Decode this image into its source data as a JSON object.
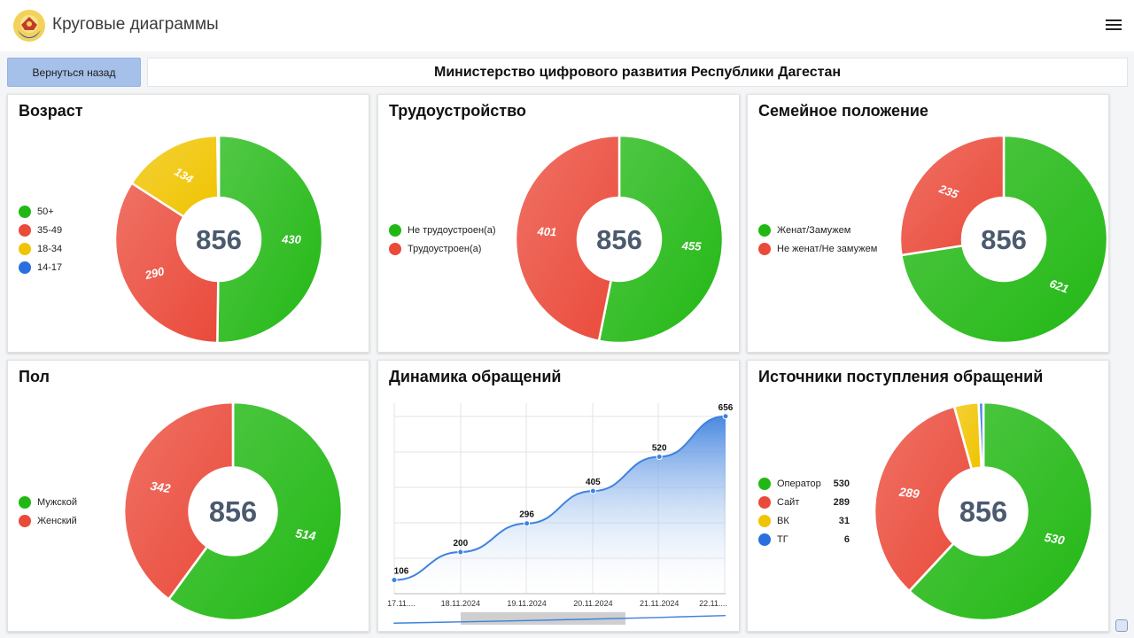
{
  "header": {
    "title": "Круговые диаграммы",
    "menu_icon": "hamburger-menu-icon",
    "logo_icon": "dagestan-emblem-icon"
  },
  "toolbar": {
    "back_label": "Вернуться назад",
    "ministry_label": "Министерство цифрового развития Республики Дагестан"
  },
  "colors": {
    "green": "#22b814",
    "red": "#ea4a3a",
    "yellow": "#f0c400",
    "blue": "#2a6fe0",
    "line": "#3f82de"
  },
  "cards": {
    "age": {
      "title": "Возраст",
      "total": "856",
      "legend": [
        {
          "label": "50+",
          "color": "#22b814"
        },
        {
          "label": "35-49",
          "color": "#ea4a3a"
        },
        {
          "label": "18-34",
          "color": "#f0c400"
        },
        {
          "label": "14-17",
          "color": "#2a6fe0"
        }
      ]
    },
    "employment": {
      "title": "Трудоустройство",
      "total": "856",
      "legend": [
        {
          "label": "Не трудоустроен(а)",
          "color": "#22b814"
        },
        {
          "label": "Трудоустроен(а)",
          "color": "#ea4a3a"
        }
      ]
    },
    "family": {
      "title": "Семейное положение",
      "total": "856",
      "legend": [
        {
          "label": "Женат/Замужем",
          "color": "#22b814"
        },
        {
          "label": "Не женат/Не замужем",
          "color": "#ea4a3a"
        }
      ]
    },
    "gender": {
      "title": "Пол",
      "total": "856",
      "legend": [
        {
          "label": "Мужской",
          "color": "#22b814"
        },
        {
          "label": "Женский",
          "color": "#ea4a3a"
        }
      ]
    },
    "dynamics": {
      "title": "Динамика обращений"
    },
    "sources": {
      "title": "Источники поступления обращений",
      "total": "856",
      "legend": [
        {
          "label": "Оператор",
          "value": "530",
          "color": "#22b814"
        },
        {
          "label": "Сайт",
          "value": "289",
          "color": "#ea4a3a"
        },
        {
          "label": "ВК",
          "value": "31",
          "color": "#f0c400"
        },
        {
          "label": "ТГ",
          "value": "6",
          "color": "#2a6fe0"
        }
      ]
    }
  },
  "chart_data": [
    {
      "type": "pie",
      "title": "Возраст",
      "categories": [
        "50+",
        "35-49",
        "18-34",
        "14-17"
      ],
      "values": [
        430,
        290,
        134,
        2
      ],
      "slice_labels": [
        "430",
        "290",
        "134",
        ""
      ],
      "colors": [
        "#22b814",
        "#ea4a3a",
        "#f0c400",
        "#2a6fe0"
      ],
      "center_text": "856",
      "legend_position": "left"
    },
    {
      "type": "pie",
      "title": "Трудоустройство",
      "categories": [
        "Не трудоустроен(а)",
        "Трудоустроен(а)"
      ],
      "values": [
        455,
        401
      ],
      "slice_labels": [
        "455",
        "401"
      ],
      "colors": [
        "#22b814",
        "#ea4a3a"
      ],
      "center_text": "856",
      "legend_position": "left"
    },
    {
      "type": "pie",
      "title": "Семейное положение",
      "categories": [
        "Женат/Замужем",
        "Не женат/Не замужем"
      ],
      "values": [
        621,
        235
      ],
      "slice_labels": [
        "621",
        "235"
      ],
      "colors": [
        "#22b814",
        "#ea4a3a"
      ],
      "center_text": "856",
      "legend_position": "left"
    },
    {
      "type": "pie",
      "title": "Пол",
      "categories": [
        "Мужской",
        "Женский"
      ],
      "values": [
        514,
        342
      ],
      "slice_labels": [
        "514",
        "342"
      ],
      "colors": [
        "#22b814",
        "#ea4a3a"
      ],
      "center_text": "856",
      "legend_position": "left"
    },
    {
      "type": "area",
      "title": "Динамика обращений",
      "x": [
        "17.11....",
        "18.11.2024",
        "19.11.2024",
        "20.11.2024",
        "21.11.2024",
        "22.11...."
      ],
      "series": [
        {
          "values": [
            106,
            200,
            296,
            405,
            520,
            656
          ]
        }
      ],
      "ylim": [
        60,
        700
      ],
      "grid": true,
      "legend_position": "none"
    },
    {
      "type": "pie",
      "title": "Источники поступления обращений",
      "categories": [
        "Оператор",
        "Сайт",
        "ВК",
        "ТГ"
      ],
      "values": [
        530,
        289,
        31,
        6
      ],
      "slice_labels": [
        "530",
        "289",
        "",
        ""
      ],
      "colors": [
        "#22b814",
        "#ea4a3a",
        "#f0c400",
        "#2a6fe0"
      ],
      "center_text": "856",
      "legend_position": "left"
    }
  ]
}
